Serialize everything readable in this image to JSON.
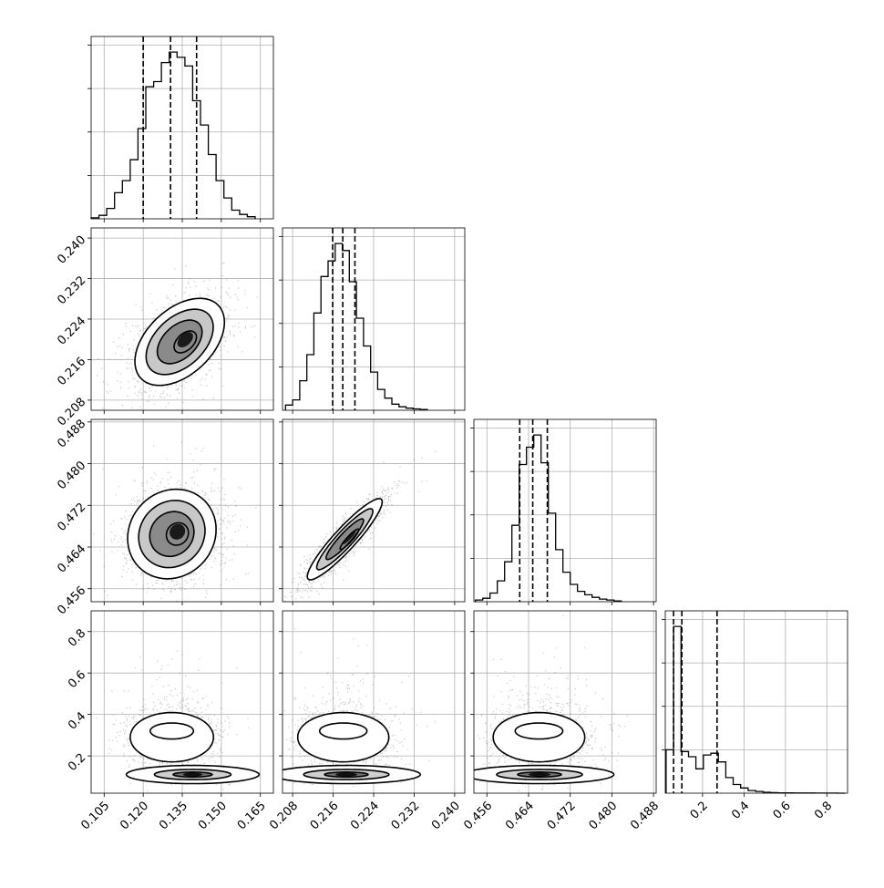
{
  "chart_data": {
    "type": "corner",
    "n_params": 4,
    "axes": [
      {
        "range": [
          0.1,
          0.17
        ],
        "ticks": [
          0.105,
          0.12,
          0.135,
          0.15,
          0.165
        ],
        "tick_labels": [
          "0.105",
          "0.120",
          "0.135",
          "0.150",
          "0.165"
        ],
        "quantiles": [
          0.12,
          0.1305,
          0.1405
        ]
      },
      {
        "range": [
          0.206,
          0.242
        ],
        "ticks": [
          0.208,
          0.216,
          0.224,
          0.232,
          0.24
        ],
        "tick_labels": [
          "0.208",
          "0.216",
          "0.224",
          "0.232",
          "0.240"
        ],
        "quantiles": [
          0.2159,
          0.2179,
          0.2203
        ]
      },
      {
        "range": [
          0.4535,
          0.4885
        ],
        "ticks": [
          0.456,
          0.464,
          0.472,
          0.48,
          0.488
        ],
        "tick_labels": [
          "0.456",
          "0.464",
          "0.472",
          "0.480",
          "0.488"
        ],
        "quantiles": [
          0.4623,
          0.4648,
          0.4676
        ]
      },
      {
        "range": [
          0.02,
          0.9
        ],
        "ticks": [
          0.2,
          0.4,
          0.6,
          0.8
        ],
        "tick_labels": [
          "0.2",
          "0.4",
          "0.6",
          "0.8"
        ],
        "quantiles": [
          0.06,
          0.1,
          0.27
        ]
      }
    ],
    "histograms": [
      {
        "x": [
          0.1015,
          0.1045,
          0.1075,
          0.1105,
          0.1135,
          0.1165,
          0.1195,
          0.1225,
          0.1255,
          0.1285,
          0.1315,
          0.1345,
          0.1375,
          0.1405,
          0.1435,
          0.1465,
          0.1495,
          0.1525,
          0.1555,
          0.1585,
          0.1615
        ],
        "y": [
          0.006,
          0.02,
          0.06,
          0.15,
          0.22,
          0.34,
          0.52,
          0.76,
          0.79,
          0.9,
          0.96,
          0.93,
          0.88,
          0.68,
          0.54,
          0.37,
          0.22,
          0.12,
          0.05,
          0.025,
          0.012
        ]
      },
      {
        "x": [
          0.2073,
          0.2087,
          0.2101,
          0.2115,
          0.2129,
          0.2143,
          0.2157,
          0.2171,
          0.2185,
          0.2199,
          0.2213,
          0.2227,
          0.2241,
          0.2255,
          0.2269,
          0.2283,
          0.2297,
          0.2311,
          0.2325,
          0.2339
        ],
        "y": [
          0.03,
          0.06,
          0.17,
          0.32,
          0.56,
          0.77,
          0.86,
          0.96,
          0.92,
          0.74,
          0.53,
          0.37,
          0.22,
          0.12,
          0.07,
          0.035,
          0.02,
          0.012,
          0.008,
          0.004
        ]
      },
      {
        "x": [
          0.4545,
          0.4559,
          0.4573,
          0.4587,
          0.4601,
          0.4615,
          0.4629,
          0.4643,
          0.4657,
          0.4671,
          0.4685,
          0.4699,
          0.4713,
          0.4727,
          0.4741,
          0.4755,
          0.4769,
          0.4783,
          0.4797,
          0.4811
        ],
        "y": [
          0.01,
          0.02,
          0.05,
          0.12,
          0.23,
          0.44,
          0.79,
          0.89,
          0.96,
          0.8,
          0.51,
          0.3,
          0.17,
          0.1,
          0.06,
          0.04,
          0.025,
          0.015,
          0.01,
          0.004
        ]
      },
      {
        "x": [
          0.042,
          0.078,
          0.114,
          0.15,
          0.186,
          0.222,
          0.258,
          0.294,
          0.33,
          0.366,
          0.402,
          0.438,
          0.474,
          0.51,
          0.546,
          0.582,
          0.618,
          0.654,
          0.69,
          0.726,
          0.762,
          0.798,
          0.834,
          0.87
        ],
        "y": [
          0.25,
          0.96,
          0.24,
          0.21,
          0.14,
          0.22,
          0.23,
          0.18,
          0.09,
          0.05,
          0.03,
          0.015,
          0.01,
          0.005,
          0.003,
          0.002,
          0.0015,
          0.001,
          0.001,
          0.0008,
          0.0005,
          0.0004,
          0.0003,
          0.0002
        ]
      }
    ],
    "pairs": [
      {
        "x": 0,
        "y": 1,
        "mode": "corr",
        "center": [
          0.134,
          0.2195
        ],
        "sigma": [
          0.0086,
          0.0043
        ],
        "rho": 0.45
      },
      {
        "x": 0,
        "y": 2,
        "mode": "corr",
        "center": [
          0.131,
          0.4665
        ],
        "sigma": [
          0.0085,
          0.0043
        ],
        "rho": 0.1
      },
      {
        "x": 1,
        "y": 2,
        "mode": "corr",
        "center": [
          0.2183,
          0.4655
        ],
        "sigma": [
          0.0037,
          0.0039
        ],
        "rho": 0.92
      },
      {
        "x": 0,
        "y": 3,
        "mode": "bimodal",
        "center_a": [
          0.139,
          0.11
        ],
        "sigma_a": [
          0.0075,
          0.022
        ],
        "center_b": [
          0.131,
          0.29
        ],
        "sigma_b": [
          0.008,
          0.085
        ]
      },
      {
        "x": 1,
        "y": 3,
        "mode": "bimodal",
        "center_a": [
          0.2186,
          0.11
        ],
        "sigma_a": [
          0.0043,
          0.022
        ],
        "center_b": [
          0.218,
          0.29
        ],
        "sigma_b": [
          0.0045,
          0.085
        ]
      },
      {
        "x": 2,
        "y": 3,
        "mode": "bimodal",
        "center_a": [
          0.4661,
          0.11
        ],
        "sigma_a": [
          0.0042,
          0.022
        ],
        "center_b": [
          0.466,
          0.29
        ],
        "sigma_b": [
          0.0044,
          0.085
        ]
      }
    ],
    "grid": true,
    "title": "",
    "xlabel": "",
    "ylabel": ""
  }
}
